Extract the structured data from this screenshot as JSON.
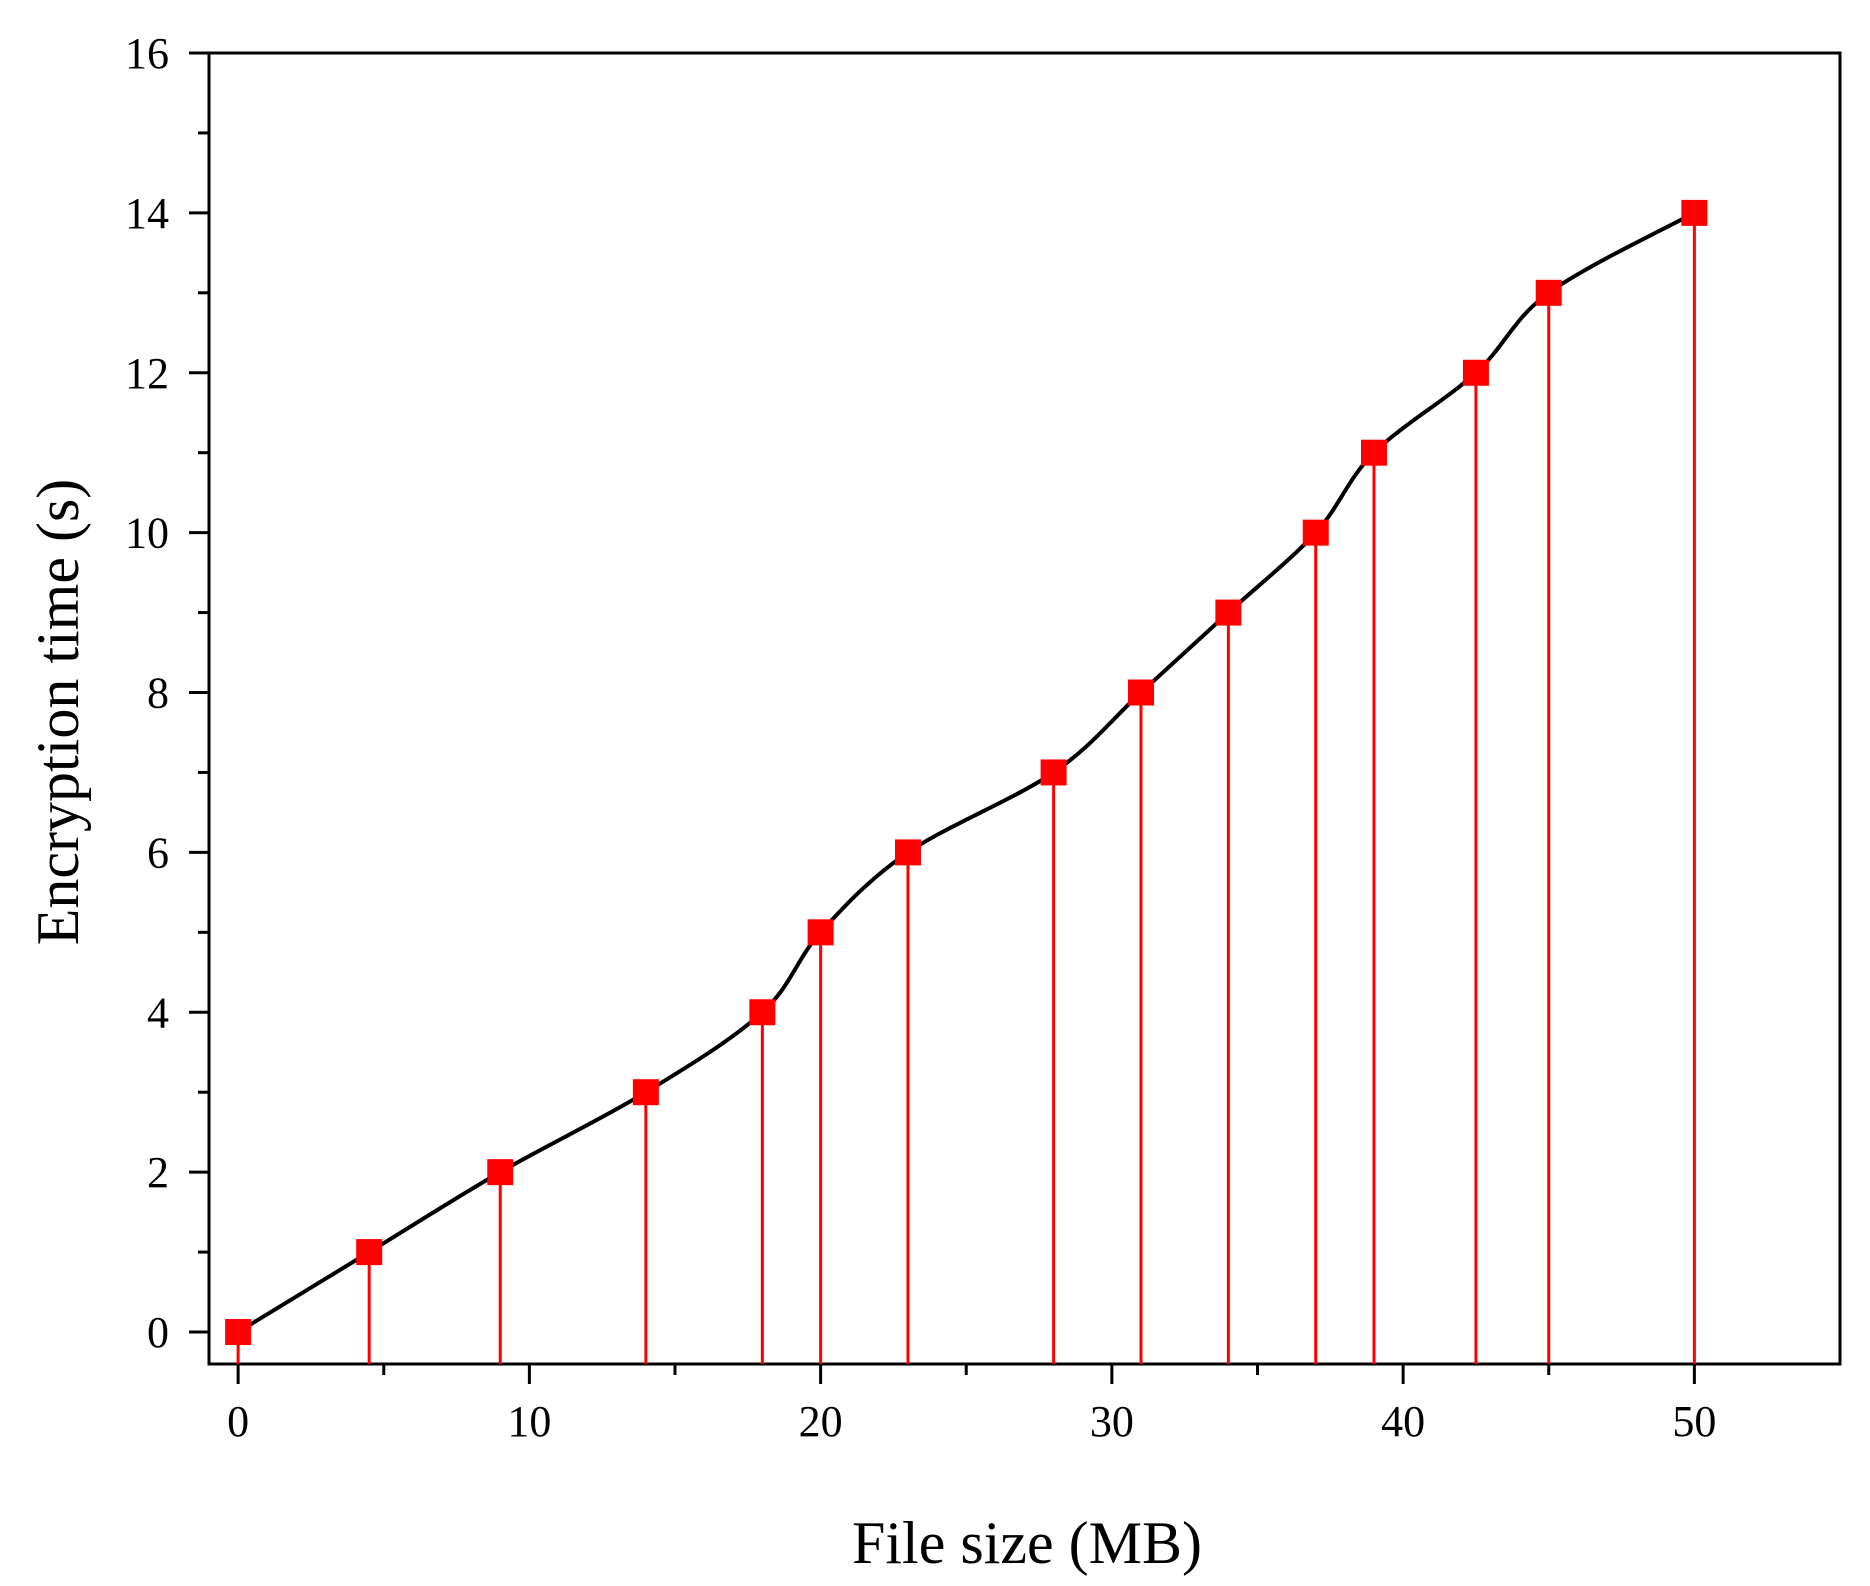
{
  "chart_data": {
    "type": "line",
    "title": "",
    "xlabel": "File size (MB)",
    "ylabel": "Encryption time (s)",
    "xlim": [
      -1,
      55
    ],
    "ylim": [
      -0.4,
      16
    ],
    "xticks": [
      0,
      10,
      20,
      30,
      40,
      50
    ],
    "yticks": [
      0,
      2,
      4,
      6,
      8,
      10,
      12,
      14,
      16
    ],
    "xtick_labels": [
      "0",
      "10",
      "20",
      "30",
      "40",
      "50"
    ],
    "ytick_labels": [
      "0",
      "2",
      "4",
      "6",
      "8",
      "10",
      "12",
      "14",
      "16"
    ],
    "grid": false,
    "legend": "none",
    "series": [
      {
        "x": [
          0,
          4.5,
          9,
          14,
          18,
          20,
          23,
          28,
          31,
          34,
          37,
          39,
          42.5,
          45,
          50
        ],
        "y": [
          0,
          1,
          2,
          3,
          4,
          5,
          6,
          7,
          8,
          9,
          10,
          11,
          12,
          13,
          14
        ],
        "line_color": "#000000",
        "marker": "square",
        "marker_color": "#ff0000",
        "drop_lines": true,
        "drop_line_color": "#ff0000",
        "smooth": true
      }
    ]
  }
}
